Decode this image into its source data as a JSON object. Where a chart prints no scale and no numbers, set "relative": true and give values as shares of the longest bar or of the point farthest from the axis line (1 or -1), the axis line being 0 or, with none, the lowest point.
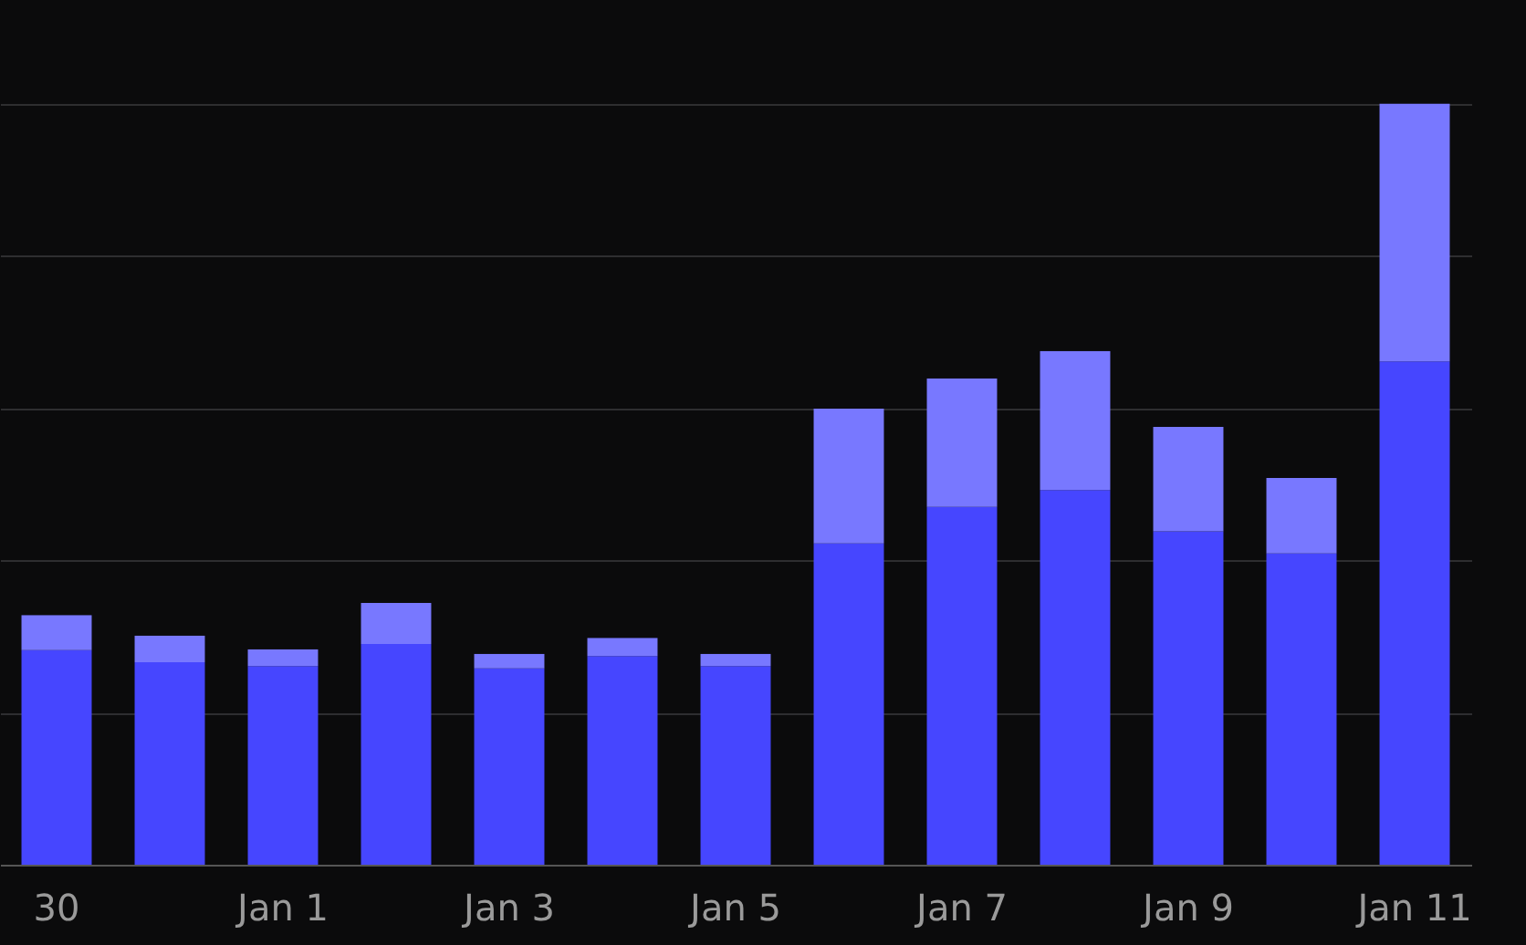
{
  "chart_data": {
    "type": "bar",
    "stacked": true,
    "relative": true,
    "grid": "y",
    "categories": [
      "30",
      null,
      "Jan 1",
      null,
      "Jan 3",
      null,
      "Jan 5",
      null,
      "Jan 7",
      null,
      "Jan 9",
      null,
      "Jan 11"
    ],
    "series": [
      {
        "color": "#4646ff",
        "values": [
          0.282,
          0.266,
          0.261,
          0.29,
          0.258,
          0.274,
          0.261,
          0.422,
          0.47,
          0.492,
          0.438,
          0.409,
          0.661
        ]
      },
      {
        "color": "#7878ff",
        "values": [
          0.046,
          0.035,
          0.022,
          0.054,
          0.019,
          0.024,
          0.016,
          0.177,
          0.169,
          0.183,
          0.137,
          0.099,
          0.339
        ]
      }
    ]
  }
}
